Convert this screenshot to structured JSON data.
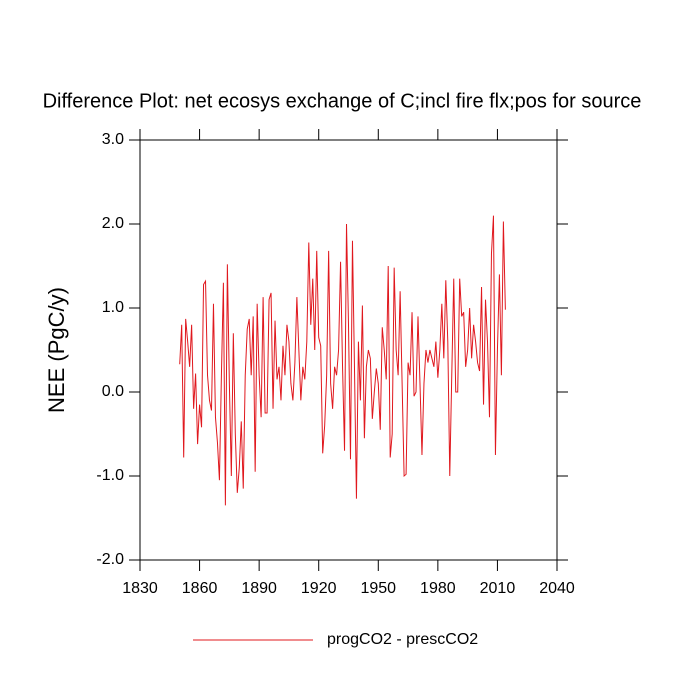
{
  "chart_data": {
    "type": "line",
    "title": "Difference Plot: net ecosys exchange of C;incl fire flx;pos for source",
    "y_label": "NEE  (PgC/y)",
    "x": [
      1850,
      1851,
      1852,
      1853,
      1854,
      1855,
      1856,
      1857,
      1858,
      1859,
      1860,
      1861,
      1862,
      1863,
      1864,
      1865,
      1866,
      1867,
      1868,
      1869,
      1870,
      1871,
      1872,
      1873,
      1874,
      1875,
      1876,
      1877,
      1878,
      1879,
      1880,
      1881,
      1882,
      1883,
      1884,
      1885,
      1886,
      1887,
      1888,
      1889,
      1890,
      1891,
      1892,
      1893,
      1894,
      1895,
      1896,
      1897,
      1898,
      1899,
      1900,
      1901,
      1902,
      1903,
      1904,
      1905,
      1906,
      1907,
      1908,
      1909,
      1910,
      1911,
      1912,
      1913,
      1914,
      1915,
      1916,
      1917,
      1918,
      1919,
      1920,
      1921,
      1922,
      1923,
      1924,
      1925,
      1926,
      1927,
      1928,
      1929,
      1930,
      1931,
      1932,
      1933,
      1934,
      1935,
      1936,
      1937,
      1938,
      1939,
      1940,
      1941,
      1942,
      1943,
      1944,
      1945,
      1946,
      1947,
      1948,
      1949,
      1950,
      1951,
      1952,
      1953,
      1954,
      1955,
      1956,
      1957,
      1958,
      1959,
      1960,
      1961,
      1962,
      1963,
      1964,
      1965,
      1966,
      1967,
      1968,
      1969,
      1970,
      1971,
      1972,
      1973,
      1974,
      1975,
      1976,
      1977,
      1978,
      1979,
      1980,
      1981,
      1982,
      1983,
      1984,
      1985,
      1986,
      1987,
      1988,
      1989,
      1990,
      1991,
      1992,
      1993,
      1994,
      1995,
      1996,
      1997,
      1998,
      1999,
      2000,
      2001,
      2002,
      2003,
      2004,
      2005,
      2006,
      2007,
      2008,
      2009,
      2010,
      2011,
      2012,
      2013,
      2014
    ],
    "series": [
      {
        "name": "progCO2 - prescCO2",
        "color": "#e0181e",
        "values": [
          0.33,
          0.8,
          -0.78,
          0.87,
          0.6,
          0.3,
          0.8,
          -0.2,
          0.22,
          -0.62,
          -0.15,
          -0.42,
          1.28,
          1.32,
          0.2,
          -0.1,
          -0.22,
          1.05,
          -0.3,
          -0.6,
          -1.05,
          0.2,
          1.3,
          -1.35,
          1.52,
          0.1,
          -1.0,
          0.7,
          -0.5,
          -1.2,
          -0.9,
          -0.35,
          -1.15,
          0.2,
          0.75,
          0.87,
          0.2,
          0.9,
          -0.95,
          1.05,
          0.2,
          -0.3,
          1.13,
          -0.25,
          -0.25,
          1.1,
          1.18,
          -0.2,
          0.85,
          0.15,
          0.3,
          -0.1,
          0.55,
          0.2,
          0.8,
          0.6,
          0.1,
          -0.1,
          0.35,
          1.13,
          0.5,
          -0.1,
          0.3,
          0.15,
          0.6,
          1.78,
          0.8,
          1.35,
          0.5,
          1.68,
          0.65,
          0.55,
          -0.73,
          -0.4,
          0.2,
          1.68,
          0.1,
          -0.2,
          0.3,
          0.2,
          0.5,
          1.55,
          0.3,
          -0.7,
          2.0,
          0.8,
          -0.8,
          1.8,
          0.3,
          -1.27,
          0.6,
          -0.1,
          1.03,
          -0.55,
          0.3,
          0.5,
          0.4,
          -0.32,
          0.0,
          0.28,
          0.1,
          -0.45,
          0.77,
          0.5,
          0.15,
          1.5,
          -0.78,
          -0.5,
          1.48,
          0.5,
          0.2,
          1.2,
          0.1,
          -1.0,
          -0.98,
          0.35,
          0.2,
          0.95,
          -0.05,
          0.0,
          0.9,
          0.1,
          -0.75,
          0.1,
          0.5,
          0.35,
          0.5,
          0.4,
          0.3,
          0.6,
          0.17,
          0.5,
          1.05,
          0.4,
          1.33,
          0.6,
          -1.0,
          0.2,
          1.35,
          0.0,
          0.0,
          1.35,
          0.9,
          0.95,
          0.3,
          0.5,
          1.0,
          0.4,
          0.8,
          0.6,
          0.35,
          0.25,
          1.25,
          -0.15,
          1.1,
          0.6,
          -0.3,
          1.65,
          2.1,
          -0.75,
          0.5,
          1.4,
          0.2,
          2.03,
          0.98
        ]
      }
    ],
    "xlim": [
      1830,
      2040
    ],
    "xticks": [
      1830,
      1860,
      1890,
      1920,
      1950,
      1980,
      2010,
      2040
    ],
    "ylim": [
      -2,
      3
    ],
    "yticks": [
      {
        "value": -2,
        "label": "-2.0"
      },
      {
        "value": -1,
        "label": "-1.0"
      },
      {
        "value": 0,
        "label": "0.0"
      },
      {
        "value": 1,
        "label": "1.0"
      },
      {
        "value": 2,
        "label": "2.0"
      },
      {
        "value": 3,
        "label": "3.0"
      }
    ],
    "legend": "bottom"
  }
}
